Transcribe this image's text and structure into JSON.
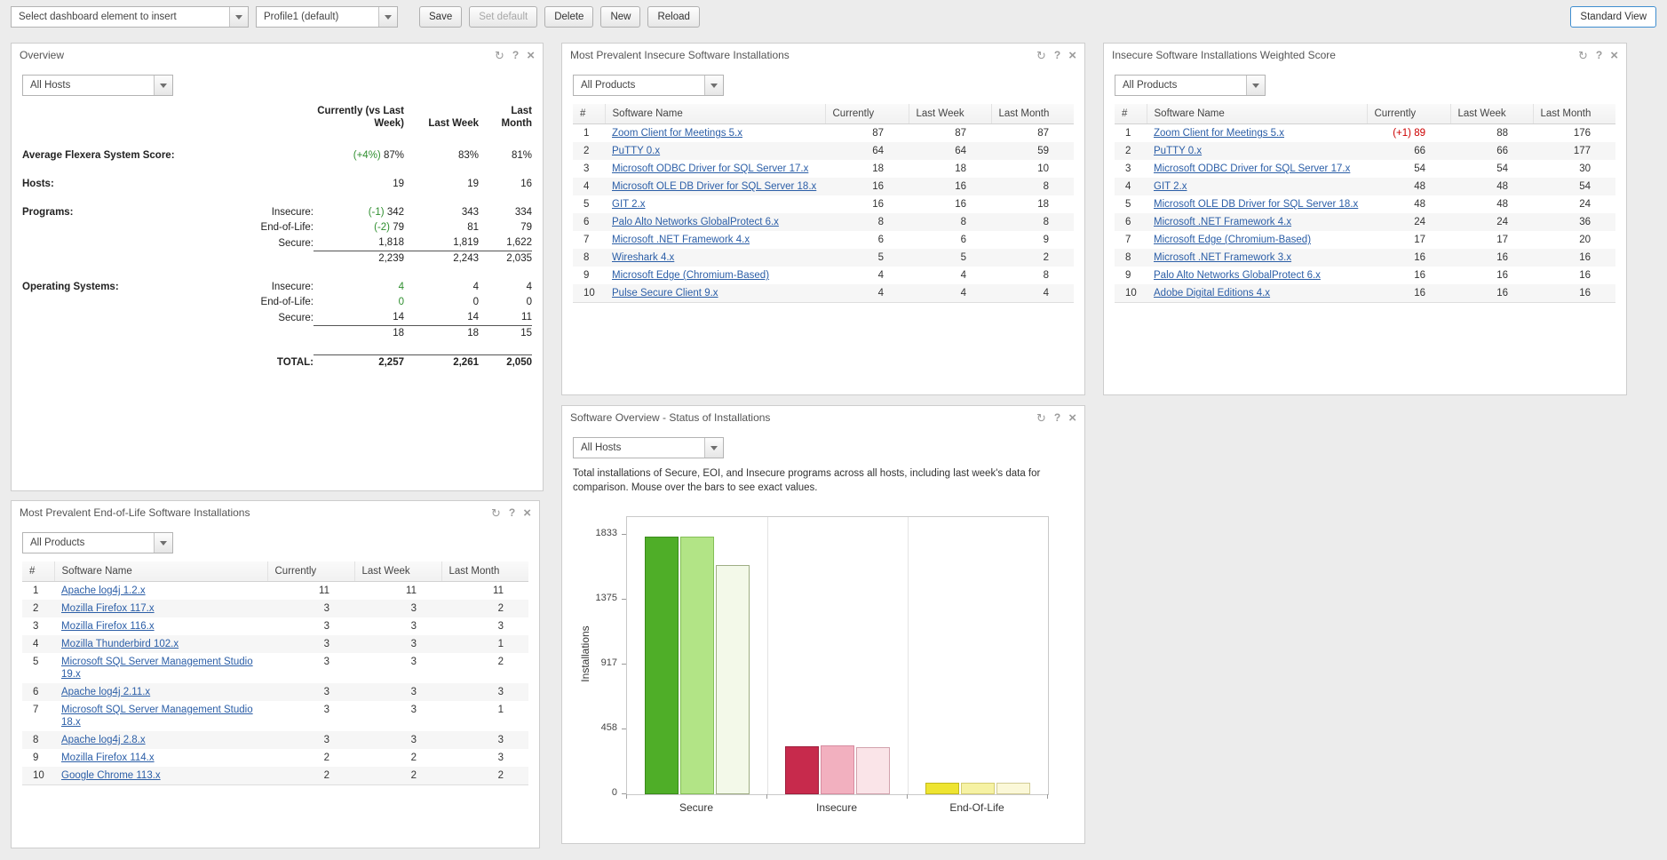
{
  "toolbar": {
    "insert_combo": "Select dashboard element to insert",
    "profile_combo": "Profile1 (default)",
    "buttons": {
      "save": "Save",
      "set_default": "Set default",
      "delete": "Delete",
      "new": "New",
      "reload": "Reload"
    },
    "view_button": "Standard View"
  },
  "icons": {
    "refresh": "↻",
    "help": "?",
    "close": "×"
  },
  "overview": {
    "title": "Overview",
    "filter": "All Hosts",
    "headers": {
      "currently": "Currently (vs Last Week)",
      "last_week": "Last Week",
      "last_month": "Last Month"
    },
    "rows": {
      "score": {
        "label": "Average Flexera System Score:",
        "delta": "(+4%)",
        "current": "87%",
        "last_week": "83%",
        "last_month": "81%"
      },
      "hosts": {
        "label": "Hosts:",
        "current": "19",
        "last_week": "19",
        "last_month": "16"
      },
      "programs": {
        "label": "Programs:",
        "insecure": {
          "label": "Insecure:",
          "delta": "(-1)",
          "current": "342",
          "last_week": "343",
          "last_month": "334"
        },
        "end_of_life": {
          "label": "End-of-Life:",
          "delta": "(-2)",
          "current": "79",
          "last_week": "81",
          "last_month": "79"
        },
        "secure": {
          "label": "Secure:",
          "current": "1,818",
          "last_week": "1,819",
          "last_month": "1,622"
        },
        "subtotal": {
          "current": "2,239",
          "last_week": "2,243",
          "last_month": "2,035"
        }
      },
      "operating_systems": {
        "label": "Operating Systems:",
        "insecure": {
          "label": "Insecure:",
          "current": "4",
          "last_week": "4",
          "last_month": "4"
        },
        "end_of_life": {
          "label": "End-of-Life:",
          "current": "0",
          "last_week": "0",
          "last_month": "0"
        },
        "secure": {
          "label": "Secure:",
          "current": "14",
          "last_week": "14",
          "last_month": "11"
        },
        "subtotal": {
          "current": "18",
          "last_week": "18",
          "last_month": "15"
        }
      },
      "total": {
        "label": "TOTAL:",
        "current": "2,257",
        "last_week": "2,261",
        "last_month": "2,050"
      }
    }
  },
  "insecure_panel": {
    "title": "Most Prevalent Insecure Software Installations",
    "filter": "All Products",
    "columns": [
      "#",
      "Software Name",
      "Currently",
      "Last Week",
      "Last Month"
    ],
    "rows": [
      {
        "n": "1",
        "name": "Zoom Client for Meetings 5.x",
        "current": "87",
        "week": "87",
        "month": "87"
      },
      {
        "n": "2",
        "name": "PuTTY 0.x",
        "current": "64",
        "week": "64",
        "month": "59"
      },
      {
        "n": "3",
        "name": "Microsoft ODBC Driver for SQL Server 17.x",
        "current": "18",
        "week": "18",
        "month": "10"
      },
      {
        "n": "4",
        "name": "Microsoft OLE DB Driver for SQL Server 18.x",
        "current": "16",
        "week": "16",
        "month": "8"
      },
      {
        "n": "5",
        "name": "GIT 2.x",
        "current": "16",
        "week": "16",
        "month": "18"
      },
      {
        "n": "6",
        "name": "Palo Alto Networks GlobalProtect 6.x",
        "current": "8",
        "week": "8",
        "month": "8"
      },
      {
        "n": "7",
        "name": "Microsoft .NET Framework 4.x",
        "current": "6",
        "week": "6",
        "month": "9"
      },
      {
        "n": "8",
        "name": "Wireshark 4.x",
        "current": "5",
        "week": "5",
        "month": "2"
      },
      {
        "n": "9",
        "name": "Microsoft Edge (Chromium-Based)",
        "current": "4",
        "week": "4",
        "month": "8"
      },
      {
        "n": "10",
        "name": "Pulse Secure Client 9.x",
        "current": "4",
        "week": "4",
        "month": "4"
      }
    ]
  },
  "weighted_panel": {
    "title": "Insecure Software Installations Weighted Score",
    "filter": "All Products",
    "columns": [
      "#",
      "Software Name",
      "Currently",
      "Last Week",
      "Last Month"
    ],
    "rows": [
      {
        "n": "1",
        "name": "Zoom Client for Meetings 5.x",
        "delta": "(+1)",
        "current": "89",
        "week": "88",
        "month": "176"
      },
      {
        "n": "2",
        "name": "PuTTY 0.x",
        "current": "66",
        "week": "66",
        "month": "177"
      },
      {
        "n": "3",
        "name": "Microsoft ODBC Driver for SQL Server 17.x",
        "current": "54",
        "week": "54",
        "month": "30"
      },
      {
        "n": "4",
        "name": "GIT 2.x",
        "current": "48",
        "week": "48",
        "month": "54"
      },
      {
        "n": "5",
        "name": "Microsoft OLE DB Driver for SQL Server 18.x",
        "current": "48",
        "week": "48",
        "month": "24"
      },
      {
        "n": "6",
        "name": "Microsoft .NET Framework 4.x",
        "current": "24",
        "week": "24",
        "month": "36"
      },
      {
        "n": "7",
        "name": "Microsoft Edge (Chromium-Based)",
        "current": "17",
        "week": "17",
        "month": "20"
      },
      {
        "n": "8",
        "name": "Microsoft .NET Framework 3.x",
        "current": "16",
        "week": "16",
        "month": "16"
      },
      {
        "n": "9",
        "name": "Palo Alto Networks GlobalProtect 6.x",
        "current": "16",
        "week": "16",
        "month": "16"
      },
      {
        "n": "10",
        "name": "Adobe Digital Editions 4.x",
        "current": "16",
        "week": "16",
        "month": "16"
      }
    ]
  },
  "eol_panel": {
    "title": "Most Prevalent End-of-Life Software Installations",
    "filter": "All Products",
    "columns": [
      "#",
      "Software Name",
      "Currently",
      "Last Week",
      "Last Month"
    ],
    "rows": [
      {
        "n": "1",
        "name": "Apache log4j 1.2.x",
        "current": "11",
        "week": "11",
        "month": "11"
      },
      {
        "n": "2",
        "name": "Mozilla Firefox 117.x",
        "current": "3",
        "week": "3",
        "month": "2"
      },
      {
        "n": "3",
        "name": "Mozilla Firefox 116.x",
        "current": "3",
        "week": "3",
        "month": "3"
      },
      {
        "n": "4",
        "name": "Mozilla Thunderbird 102.x",
        "current": "3",
        "week": "3",
        "month": "1"
      },
      {
        "n": "5",
        "name": "Microsoft SQL Server Management Studio 19.x",
        "current": "3",
        "week": "3",
        "month": "2"
      },
      {
        "n": "6",
        "name": "Apache log4j 2.11.x",
        "current": "3",
        "week": "3",
        "month": "3"
      },
      {
        "n": "7",
        "name": "Microsoft SQL Server Management Studio 18.x",
        "current": "3",
        "week": "3",
        "month": "1"
      },
      {
        "n": "8",
        "name": "Apache log4j 2.8.x",
        "current": "3",
        "week": "3",
        "month": "3"
      },
      {
        "n": "9",
        "name": "Mozilla Firefox 114.x",
        "current": "2",
        "week": "2",
        "month": "3"
      },
      {
        "n": "10",
        "name": "Google Chrome 113.x",
        "current": "2",
        "week": "2",
        "month": "2"
      }
    ]
  },
  "chart_panel": {
    "title": "Software Overview - Status of Installations",
    "filter": "All Hosts",
    "description": "Total installations of Secure, EOI, and Insecure programs across all hosts, including last week's data for comparison. Mouse over the bars to see exact values."
  },
  "chart_data": {
    "type": "bar",
    "title": "Software Overview - Status of Installations",
    "ylabel": "Installations",
    "categories": [
      "Secure",
      "Insecure",
      "End-Of-Life"
    ],
    "series": [
      {
        "name": "Currently",
        "values": [
          1818,
          342,
          79
        ]
      },
      {
        "name": "Last Week",
        "values": [
          1819,
          343,
          81
        ]
      },
      {
        "name": "Last Month",
        "values": [
          1622,
          334,
          79
        ]
      }
    ],
    "yticks": [
      0,
      458,
      917,
      1375,
      1833
    ],
    "ylim": [
      0,
      1833
    ],
    "grid": false,
    "legend": "none",
    "colors": {
      "fills": [
        [
          "#4fae28",
          "#b2e486",
          "#f3f9e9"
        ],
        [
          "#c72a4c",
          "#f2b0bf",
          "#fae4e8"
        ],
        [
          "#eee431",
          "#f6f2a3",
          "#fbf8d8"
        ]
      ],
      "strokes": [
        [
          "#3a8a1b",
          "#84bf57",
          "#9fae84"
        ],
        [
          "#9e1f3d",
          "#d78ca0",
          "#d2a2ad"
        ],
        [
          "#c2b91e",
          "#d5cd73",
          "#d2cc95"
        ]
      ]
    }
  }
}
